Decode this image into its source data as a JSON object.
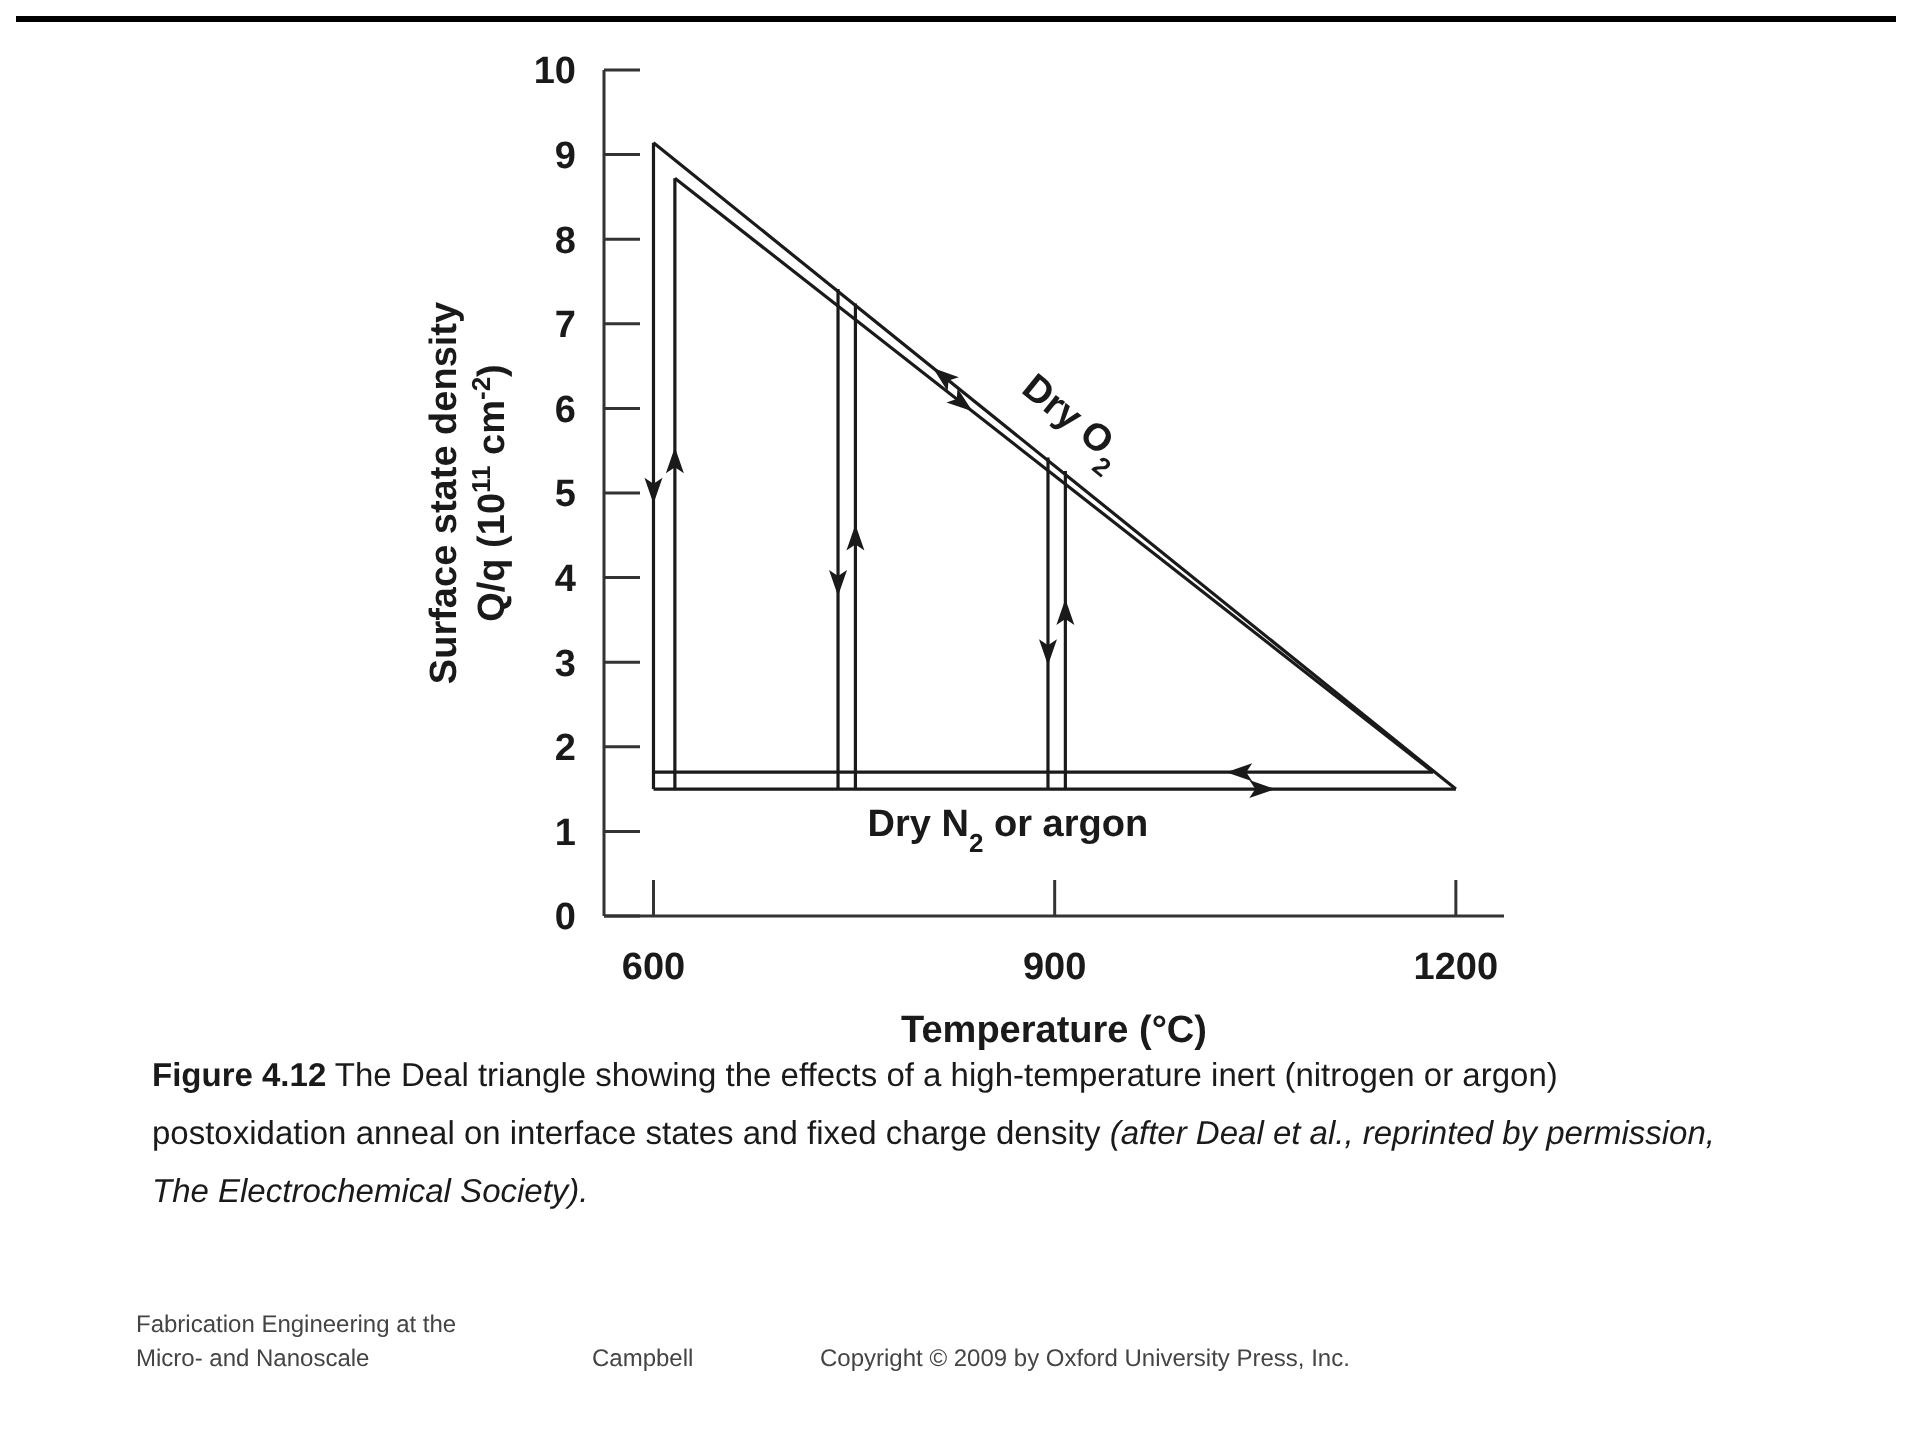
{
  "chart_data": {
    "type": "line",
    "xlabel": "Temperature (°C)",
    "ylabel": "Surface state density\nQ/q (10$^{11}$ cm$^{-2}$)",
    "xlim": [
      563,
      1236
    ],
    "xticks": [
      600,
      900,
      1200
    ],
    "ylim": [
      0,
      10
    ],
    "yticks": [
      0,
      1,
      2,
      3,
      4,
      5,
      6,
      7,
      8,
      9,
      10
    ],
    "series": [
      {
        "color": "#1a1a1a",
        "x": [
          600,
          600
        ],
        "values": [
          9.14,
          1.5
        ]
      },
      {
        "color": "#1a1a1a",
        "x": [
          616,
          616
        ],
        "values": [
          1.5,
          8.72
        ]
      },
      {
        "color": "#1a1a1a",
        "x": [
          600,
          1200
        ],
        "values": [
          1.5,
          1.5
        ]
      },
      {
        "color": "#1a1a1a",
        "x": [
          1183,
          600
        ],
        "values": [
          1.7,
          1.7
        ]
      },
      {
        "color": "#1a1a1a",
        "x": [
          1200,
          600
        ],
        "values": [
          1.5,
          9.14
        ]
      },
      {
        "color": "#1a1a1a",
        "x": [
          616,
          1183
        ],
        "values": [
          8.72,
          1.7
        ]
      },
      {
        "color": "#1a1a1a",
        "x": [
          738,
          738
        ],
        "values": [
          7.41,
          1.5
        ]
      },
      {
        "color": "#1a1a1a",
        "x": [
          751,
          751
        ],
        "values": [
          1.5,
          7.24
        ]
      },
      {
        "color": "#1a1a1a",
        "x": [
          895,
          895
        ],
        "values": [
          5.42,
          1.5
        ]
      },
      {
        "color": "#1a1a1a",
        "x": [
          908,
          908
        ],
        "values": [
          1.5,
          5.26
        ]
      }
    ],
    "annotations": [
      "Dry O$_{2}$",
      "Dry N$_{2}$ or argon",
      "Figure 4.12",
      "The Deal triangle showing the effects of a high-temperature inert (nitrogen or argon) postoxidation anneal on interface states and fixed charge density",
      "(after Deal et al., reprinted by permission, The Electrochemical Society).",
      "Fabrication Engineering at the\nMicro- and Nanoscale",
      "Campbell",
      "Copyright © 2009 by Oxford University Press, Inc."
    ]
  }
}
